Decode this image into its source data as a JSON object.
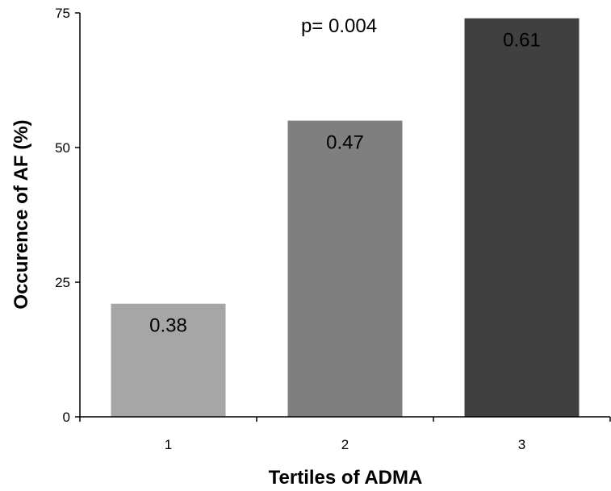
{
  "chart_data": {
    "type": "bar",
    "title": "",
    "xlabel": "Tertiles of ADMA",
    "ylabel": "Occurence of AF (%)",
    "categories": [
      "1",
      "2",
      "3"
    ],
    "values": [
      21,
      55,
      74
    ],
    "data_labels": [
      "0.38",
      "0.47",
      "0.61"
    ],
    "bar_colors": [
      "#a6a6a6",
      "#7f7f7f",
      "#404040"
    ],
    "ylim": [
      0,
      75
    ],
    "yticks": [
      0,
      25,
      50,
      75
    ],
    "ytick_labels": [
      "0",
      "25",
      "50",
      "75"
    ],
    "annotation": "p= 0.004",
    "grid": false,
    "legend": "none"
  }
}
